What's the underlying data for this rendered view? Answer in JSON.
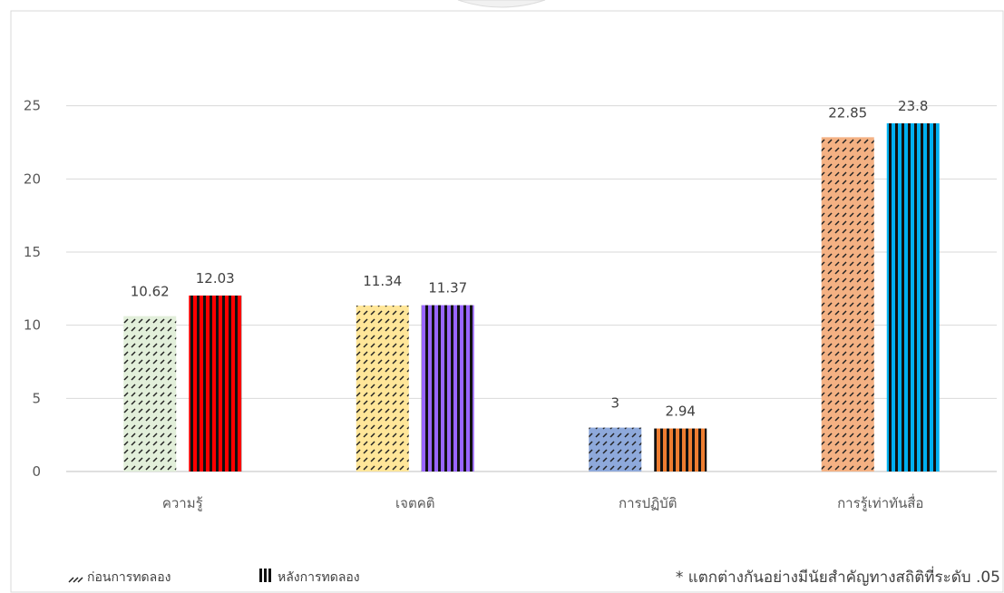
{
  "chart_data": {
    "type": "bar",
    "categories": [
      "ความรู้",
      "เจตคติ",
      "การปฏิบัติ",
      "การรู้เท่าทันสื่อ"
    ],
    "series": [
      {
        "name": "ก่อนการทดลอง",
        "values": [
          10.62,
          11.34,
          3,
          22.85
        ],
        "labels": [
          "10.62",
          "11.34",
          "3",
          "22.85"
        ],
        "pattern": "diagonal-dashes",
        "colors": [
          "#e2efda",
          "#ffe699",
          "#8ea9db",
          "#f4b183"
        ]
      },
      {
        "name": "หลังการทดลอง",
        "values": [
          12.03,
          11.37,
          2.94,
          23.8
        ],
        "labels": [
          "12.03",
          "11.37",
          "2.94",
          "23.8"
        ],
        "pattern": "vertical-stripes",
        "colors": [
          "#ff0000",
          "#9966ff",
          "#ed7d31",
          "#00b0f0"
        ]
      }
    ],
    "yticks": [
      "0",
      "5",
      "10",
      "15",
      "20",
      "25"
    ],
    "ylim": [
      0,
      30
    ],
    "grid": true,
    "legend_position": "bottom-left",
    "footnote": "* แตกต่างกันอย่างมีนัยสำคัญทางสถิติที่ระดับ .05"
  }
}
